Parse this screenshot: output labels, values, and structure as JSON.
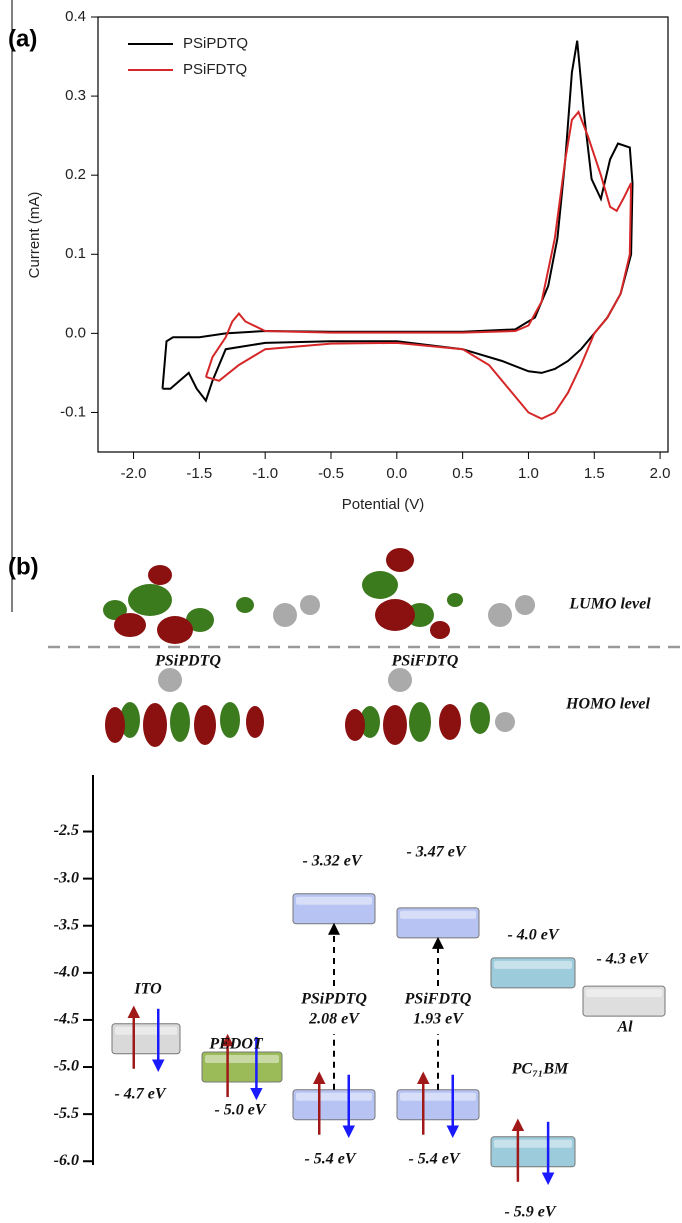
{
  "panel_labels": [
    "(a)",
    "(b)"
  ],
  "orbitals": {
    "molecules": [
      "PSiPDTQ",
      "PSiFDTQ"
    ],
    "levels": [
      "LUMO level",
      "HOMO level"
    ]
  },
  "chart_data": [
    {
      "type": "line",
      "xlabel": "Potential (V)",
      "ylabel": "Current (mA)",
      "xlim": [
        -2.27,
        2.06
      ],
      "ylim": [
        -0.15,
        0.4
      ],
      "xticks": [
        {
          "value": -2,
          "label": "-2.0"
        },
        -1.5,
        {
          "value": -1,
          "label": "-1.0"
        },
        -0.5,
        {
          "value": 0,
          "label": "0.0"
        },
        0.5,
        {
          "value": 1,
          "label": "1.0"
        },
        1.5,
        {
          "value": 2,
          "label": "2.0"
        }
      ],
      "yticks": [
        -0.1,
        {
          "value": 0,
          "label": "0.0"
        },
        0.1,
        0.2,
        0.3,
        0.4
      ],
      "legend": "upper left",
      "series": [
        {
          "name": "PSiPDTQ",
          "color": "#000000",
          "x": [
            -1.78,
            -1.75,
            -1.7,
            -1.5,
            -1.3,
            -1.0,
            -0.5,
            0.0,
            0.5,
            0.9,
            1.05,
            1.15,
            1.22,
            1.28,
            1.33,
            1.37,
            1.42,
            1.48,
            1.55,
            1.62,
            1.68,
            1.77,
            1.79,
            1.78,
            1.7,
            1.6,
            1.5,
            1.4,
            1.3,
            1.2,
            1.1,
            1.0,
            0.8,
            0.5,
            0.0,
            -0.5,
            -1.0,
            -1.3,
            -1.4,
            -1.45,
            -1.52,
            -1.58,
            -1.65,
            -1.72,
            -1.78
          ],
          "values": [
            -0.07,
            -0.01,
            -0.005,
            -0.005,
            0.0,
            0.003,
            0.002,
            0.002,
            0.002,
            0.005,
            0.02,
            0.06,
            0.12,
            0.22,
            0.33,
            0.37,
            0.28,
            0.195,
            0.17,
            0.22,
            0.24,
            0.235,
            0.19,
            0.1,
            0.05,
            0.02,
            0.0,
            -0.02,
            -0.035,
            -0.045,
            -0.05,
            -0.048,
            -0.035,
            -0.02,
            -0.01,
            -0.01,
            -0.012,
            -0.02,
            -0.06,
            -0.085,
            -0.07,
            -0.05,
            -0.06,
            -0.07,
            -0.07
          ]
        },
        {
          "name": "PSiFDTQ",
          "color": "#d62728",
          "x": [
            -1.45,
            -1.4,
            -1.3,
            -1.25,
            -1.2,
            -1.15,
            -1.0,
            -0.5,
            0.0,
            0.5,
            0.9,
            1.0,
            1.1,
            1.2,
            1.28,
            1.33,
            1.38,
            1.45,
            1.55,
            1.62,
            1.67,
            1.72,
            1.78,
            1.77,
            1.7,
            1.6,
            1.5,
            1.4,
            1.3,
            1.2,
            1.1,
            1.0,
            0.9,
            0.7,
            0.5,
            0.0,
            -0.5,
            -1.0,
            -1.2,
            -1.35,
            -1.45
          ],
          "values": [
            -0.055,
            -0.03,
            -0.005,
            0.015,
            0.025,
            0.015,
            0.003,
            0.001,
            0.001,
            0.001,
            0.003,
            0.01,
            0.04,
            0.12,
            0.22,
            0.27,
            0.28,
            0.25,
            0.2,
            0.16,
            0.155,
            0.17,
            0.19,
            0.1,
            0.05,
            0.02,
            0.0,
            -0.04,
            -0.075,
            -0.1,
            -0.108,
            -0.1,
            -0.08,
            -0.04,
            -0.02,
            -0.012,
            -0.013,
            -0.02,
            -0.04,
            -0.06,
            -0.055
          ]
        }
      ]
    },
    {
      "type": "energy-level",
      "ylim": [
        -1.9,
        -6.04
      ],
      "yticks": [
        -2.5,
        {
          "value": -3,
          "label": "-3.0"
        },
        -3.5,
        {
          "value": -4,
          "label": "-4.0"
        },
        -4.5,
        {
          "value": -5,
          "label": "-5.0"
        },
        -5.5,
        {
          "value": -6,
          "label": "-6.0"
        }
      ],
      "materials": [
        {
          "name": "ITO",
          "values": [
            -4.7
          ],
          "value_labels": [
            "- 4.7 eV"
          ],
          "color": "#d9d9d9"
        },
        {
          "name": "PEDOT",
          "values": [
            -5.0
          ],
          "value_labels": [
            "- 5.0 eV"
          ],
          "color": "#9bbb59"
        },
        {
          "name": "PSiPDTQ",
          "values": [
            -3.32,
            -5.4
          ],
          "value_labels": [
            "- 3.32 eV",
            "- 5.4 eV"
          ],
          "color": "#b7c3f2",
          "gap": 2.08,
          "gap_label": "2.08 eV"
        },
        {
          "name": "PSiFDTQ",
          "values": [
            -3.47,
            -5.4
          ],
          "value_labels": [
            "- 3.47 eV",
            "- 5.4 eV"
          ],
          "color": "#b7c3f2",
          "gap": 1.93,
          "gap_label": "1.93 eV"
        },
        {
          "name": "PC₇₁BM",
          "values": [
            -4.0,
            -5.9
          ],
          "value_labels": [
            "- 4.0 eV",
            "- 5.9 eV"
          ],
          "color": "#9ccbdc"
        },
        {
          "name": "Al",
          "values": [
            -4.3
          ],
          "value_labels": [
            "- 4.3 eV"
          ],
          "color": "#dedede"
        }
      ]
    }
  ]
}
